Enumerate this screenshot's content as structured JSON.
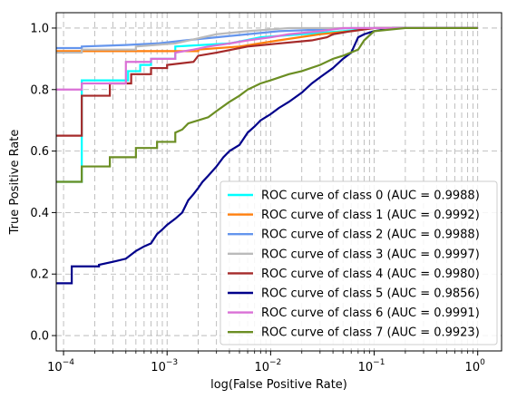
{
  "chart_data": {
    "type": "line",
    "title": "",
    "xlabel": "log(False Positive Rate)",
    "ylabel": "True Positive Rate",
    "xscale": "log",
    "xlim": [
      8.5e-05,
      1.7
    ],
    "ylim": [
      -0.05,
      1.05
    ],
    "grid": true,
    "legend_position": "lower-right",
    "x_ticks": [
      {
        "value": 0.0001,
        "base": "10",
        "exp": "−4"
      },
      {
        "value": 0.001,
        "base": "10",
        "exp": "−3"
      },
      {
        "value": 0.01,
        "base": "10",
        "exp": "−2"
      },
      {
        "value": 0.1,
        "base": "10",
        "exp": "−1"
      },
      {
        "value": 1,
        "base": "10",
        "exp": "0"
      }
    ],
    "y_ticks": [
      {
        "value": 0.0,
        "label": "0.0"
      },
      {
        "value": 0.2,
        "label": "0.2"
      },
      {
        "value": 0.4,
        "label": "0.4"
      },
      {
        "value": 0.6,
        "label": "0.6"
      },
      {
        "value": 0.8,
        "label": "0.8"
      },
      {
        "value": 1.0,
        "label": "1.0"
      }
    ],
    "series": [
      {
        "name": "ROC curve of class 0 (AUC = 0.9988)",
        "color": "#00ffff",
        "points": [
          [
            8.5e-05,
            0.5
          ],
          [
            0.00015,
            0.5
          ],
          [
            0.00015,
            0.83
          ],
          [
            0.00042,
            0.83
          ],
          [
            0.00042,
            0.86
          ],
          [
            0.00055,
            0.86
          ],
          [
            0.00055,
            0.88
          ],
          [
            0.0007,
            0.88
          ],
          [
            0.0007,
            0.9
          ],
          [
            0.0012,
            0.9
          ],
          [
            0.0012,
            0.94
          ],
          [
            0.004,
            0.95
          ],
          [
            0.008,
            0.97
          ],
          [
            0.02,
            0.98
          ],
          [
            0.05,
            0.99
          ],
          [
            0.1,
            1.0
          ],
          [
            1.0,
            1.0
          ]
        ]
      },
      {
        "name": "ROC curve of class 1 (AUC = 0.9992)",
        "color": "#ff7f0e",
        "points": [
          [
            8.5e-05,
            0.925
          ],
          [
            0.002,
            0.925
          ],
          [
            0.002,
            0.93
          ],
          [
            0.005,
            0.94
          ],
          [
            0.012,
            0.96
          ],
          [
            0.03,
            0.98
          ],
          [
            0.06,
            0.99
          ],
          [
            0.1,
            1.0
          ],
          [
            1.0,
            1.0
          ]
        ]
      },
      {
        "name": "ROC curve of class 2 (AUC = 0.9988)",
        "color": "#6495ed",
        "points": [
          [
            8.5e-05,
            0.935
          ],
          [
            0.00015,
            0.935
          ],
          [
            0.00015,
            0.94
          ],
          [
            0.0004,
            0.945
          ],
          [
            0.0008,
            0.95
          ],
          [
            0.0015,
            0.96
          ],
          [
            0.003,
            0.97
          ],
          [
            0.006,
            0.98
          ],
          [
            0.012,
            0.99
          ],
          [
            0.03,
            0.995
          ],
          [
            0.06,
            1.0
          ],
          [
            1.0,
            1.0
          ]
        ]
      },
      {
        "name": "ROC curve of class 3 (AUC = 0.9997)",
        "color": "#bbbbbb",
        "points": [
          [
            8.5e-05,
            0.92
          ],
          [
            0.00015,
            0.92
          ],
          [
            0.00015,
            0.93
          ],
          [
            0.0005,
            0.93
          ],
          [
            0.0005,
            0.94
          ],
          [
            0.0012,
            0.95
          ],
          [
            0.003,
            0.98
          ],
          [
            0.006,
            0.99
          ],
          [
            0.015,
            1.0
          ],
          [
            1.0,
            1.0
          ]
        ]
      },
      {
        "name": "ROC curve of class 4 (AUC = 0.9980)",
        "color": "#a52a2a",
        "points": [
          [
            8.5e-05,
            0.65
          ],
          [
            0.00015,
            0.65
          ],
          [
            0.00015,
            0.78
          ],
          [
            0.00028,
            0.78
          ],
          [
            0.00028,
            0.82
          ],
          [
            0.00045,
            0.82
          ],
          [
            0.00045,
            0.85
          ],
          [
            0.0007,
            0.85
          ],
          [
            0.0007,
            0.87
          ],
          [
            0.001,
            0.87
          ],
          [
            0.001,
            0.88
          ],
          [
            0.0018,
            0.89
          ],
          [
            0.002,
            0.91
          ],
          [
            0.003,
            0.92
          ],
          [
            0.006,
            0.94
          ],
          [
            0.012,
            0.95
          ],
          [
            0.025,
            0.96
          ],
          [
            0.035,
            0.97
          ],
          [
            0.04,
            0.98
          ],
          [
            0.06,
            0.99
          ],
          [
            0.1,
            1.0
          ],
          [
            1.0,
            1.0
          ]
        ]
      },
      {
        "name": "ROC curve of class 5 (AUC = 0.9856)",
        "color": "#00008b",
        "points": [
          [
            8.5e-05,
            0.17
          ],
          [
            0.00012,
            0.17
          ],
          [
            0.00012,
            0.225
          ],
          [
            0.00022,
            0.225
          ],
          [
            0.00022,
            0.23
          ],
          [
            0.0003,
            0.24
          ],
          [
            0.0004,
            0.25
          ],
          [
            0.0005,
            0.275
          ],
          [
            0.0006,
            0.29
          ],
          [
            0.0007,
            0.3
          ],
          [
            0.0008,
            0.33
          ],
          [
            0.0009,
            0.345
          ],
          [
            0.001,
            0.36
          ],
          [
            0.0012,
            0.38
          ],
          [
            0.0014,
            0.4
          ],
          [
            0.0016,
            0.44
          ],
          [
            0.0018,
            0.46
          ],
          [
            0.002,
            0.48
          ],
          [
            0.0022,
            0.5
          ],
          [
            0.0025,
            0.52
          ],
          [
            0.003,
            0.55
          ],
          [
            0.0035,
            0.58
          ],
          [
            0.004,
            0.6
          ],
          [
            0.005,
            0.62
          ],
          [
            0.006,
            0.66
          ],
          [
            0.007,
            0.68
          ],
          [
            0.008,
            0.7
          ],
          [
            0.01,
            0.72
          ],
          [
            0.012,
            0.74
          ],
          [
            0.015,
            0.76
          ],
          [
            0.02,
            0.79
          ],
          [
            0.025,
            0.82
          ],
          [
            0.03,
            0.84
          ],
          [
            0.04,
            0.87
          ],
          [
            0.05,
            0.9
          ],
          [
            0.06,
            0.92
          ],
          [
            0.07,
            0.97
          ],
          [
            0.08,
            0.98
          ],
          [
            0.1,
            0.99
          ],
          [
            0.15,
            1.0
          ],
          [
            1.0,
            1.0
          ]
        ]
      },
      {
        "name": "ROC curve of class 6 (AUC = 0.9991)",
        "color": "#da70d6",
        "points": [
          [
            8.5e-05,
            0.8
          ],
          [
            0.00015,
            0.8
          ],
          [
            0.00015,
            0.82
          ],
          [
            0.0004,
            0.82
          ],
          [
            0.0004,
            0.89
          ],
          [
            0.0007,
            0.89
          ],
          [
            0.0007,
            0.9
          ],
          [
            0.0012,
            0.9
          ],
          [
            0.0012,
            0.92
          ],
          [
            0.0018,
            0.93
          ],
          [
            0.0025,
            0.94
          ],
          [
            0.004,
            0.95
          ],
          [
            0.006,
            0.96
          ],
          [
            0.01,
            0.97
          ],
          [
            0.015,
            0.98
          ],
          [
            0.03,
            0.99
          ],
          [
            0.05,
            1.0
          ],
          [
            1.0,
            1.0
          ]
        ]
      },
      {
        "name": "ROC curve of class 7 (AUC = 0.9923)",
        "color": "#6b8e23",
        "points": [
          [
            8.5e-05,
            0.5
          ],
          [
            0.00015,
            0.5
          ],
          [
            0.00015,
            0.55
          ],
          [
            0.00028,
            0.55
          ],
          [
            0.00028,
            0.58
          ],
          [
            0.0005,
            0.58
          ],
          [
            0.0005,
            0.61
          ],
          [
            0.0008,
            0.61
          ],
          [
            0.0008,
            0.63
          ],
          [
            0.0012,
            0.63
          ],
          [
            0.0012,
            0.66
          ],
          [
            0.0014,
            0.67
          ],
          [
            0.0016,
            0.69
          ],
          [
            0.002,
            0.7
          ],
          [
            0.0025,
            0.71
          ],
          [
            0.003,
            0.73
          ],
          [
            0.004,
            0.76
          ],
          [
            0.005,
            0.78
          ],
          [
            0.006,
            0.8
          ],
          [
            0.008,
            0.82
          ],
          [
            0.01,
            0.83
          ],
          [
            0.015,
            0.85
          ],
          [
            0.02,
            0.86
          ],
          [
            0.03,
            0.88
          ],
          [
            0.04,
            0.9
          ],
          [
            0.05,
            0.91
          ],
          [
            0.07,
            0.93
          ],
          [
            0.08,
            0.96
          ],
          [
            0.1,
            0.99
          ],
          [
            0.2,
            1.0
          ],
          [
            1.0,
            1.0
          ]
        ]
      }
    ]
  }
}
